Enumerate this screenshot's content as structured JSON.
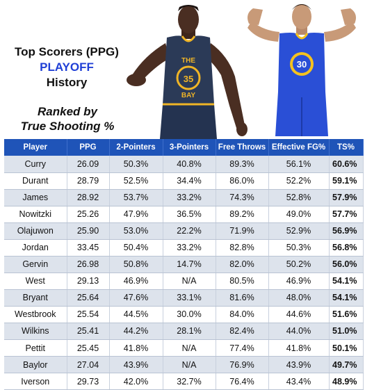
{
  "title": {
    "line1": "Top Scorers (PPG)",
    "line2": "PLAYOFF",
    "line3": "History"
  },
  "subtitle": {
    "line1": "Ranked by",
    "line2": "True Shooting %"
  },
  "colors": {
    "header_bg": "#1f54b8",
    "playoff_text": "#1f3fd6",
    "row_alt": "#dde3ec"
  },
  "jersey_left": {
    "text_top": "THE",
    "text_bottom": "BAY",
    "number": "35"
  },
  "jersey_right": {
    "number": "30"
  },
  "table": {
    "columns": [
      "Player",
      "PPG",
      "2-Pointers",
      "3-Pointers",
      "Free Throws",
      "Effective FG%",
      "TS%"
    ],
    "rows": [
      [
        "Curry",
        "26.09",
        "50.3%",
        "40.8%",
        "89.3%",
        "56.1%",
        "60.6%"
      ],
      [
        "Durant",
        "28.79",
        "52.5%",
        "34.4%",
        "86.0%",
        "52.2%",
        "59.1%"
      ],
      [
        "James",
        "28.92",
        "53.7%",
        "33.2%",
        "74.3%",
        "52.8%",
        "57.9%"
      ],
      [
        "Nowitzki",
        "25.26",
        "47.9%",
        "36.5%",
        "89.2%",
        "49.0%",
        "57.7%"
      ],
      [
        "Olajuwon",
        "25.90",
        "53.0%",
        "22.2%",
        "71.9%",
        "52.9%",
        "56.9%"
      ],
      [
        "Jordan",
        "33.45",
        "50.4%",
        "33.2%",
        "82.8%",
        "50.3%",
        "56.8%"
      ],
      [
        "Gervin",
        "26.98",
        "50.8%",
        "14.7%",
        "82.0%",
        "50.2%",
        "56.0%"
      ],
      [
        "West",
        "29.13",
        "46.9%",
        "N/A",
        "80.5%",
        "46.9%",
        "54.1%"
      ],
      [
        "Bryant",
        "25.64",
        "47.6%",
        "33.1%",
        "81.6%",
        "48.0%",
        "54.1%"
      ],
      [
        "Westbrook",
        "25.54",
        "44.5%",
        "30.0%",
        "84.0%",
        "44.6%",
        "51.6%"
      ],
      [
        "Wilkins",
        "25.41",
        "44.2%",
        "28.1%",
        "82.4%",
        "44.0%",
        "51.0%"
      ],
      [
        "Pettit",
        "25.45",
        "41.8%",
        "N/A",
        "77.4%",
        "41.8%",
        "50.1%"
      ],
      [
        "Baylor",
        "27.04",
        "43.9%",
        "N/A",
        "76.9%",
        "43.9%",
        "49.7%"
      ],
      [
        "Iverson",
        "29.73",
        "42.0%",
        "32.7%",
        "76.4%",
        "43.4%",
        "48.9%"
      ]
    ]
  }
}
